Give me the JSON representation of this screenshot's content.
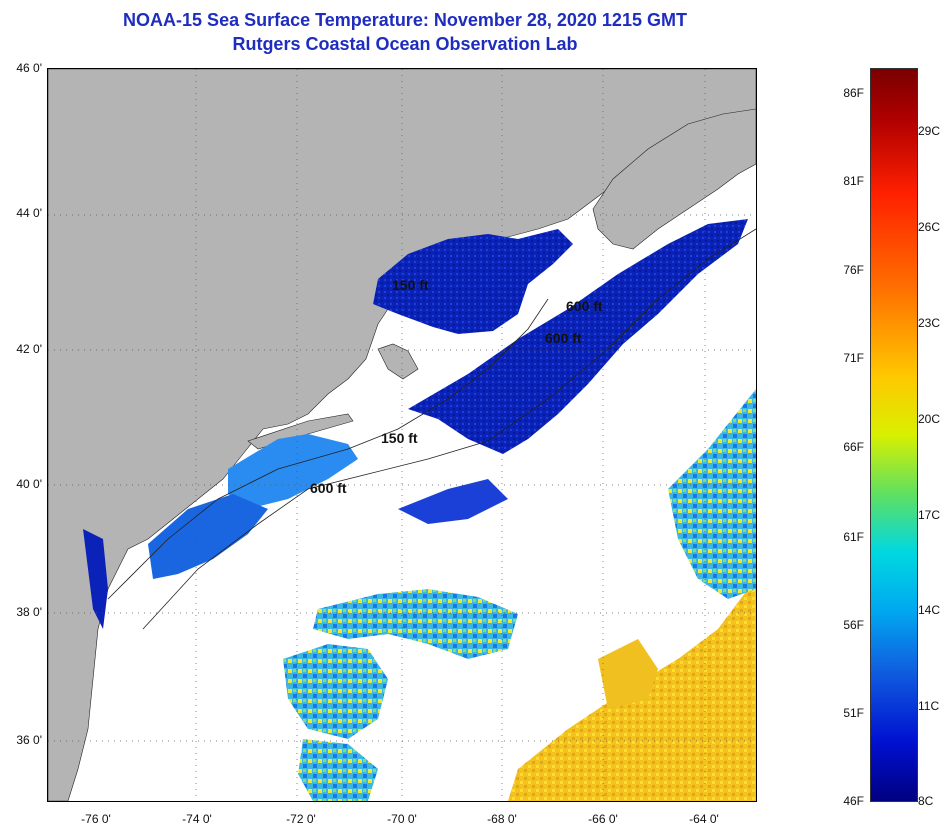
{
  "header": {
    "title": "NOAA-15 Sea Surface Temperature:  November 28, 2020 1215 GMT",
    "subtitle": "Rutgers Coastal Ocean Observation Lab"
  },
  "map": {
    "lat_labels": [
      "46 0'",
      "44 0'",
      "42 0'",
      "40 0'",
      "38 0'",
      "36 0'"
    ],
    "lon_labels": [
      "-76 0'",
      "-74 0'",
      "-72 0'",
      "-70 0'",
      "-68 0'",
      "-66 0'",
      "-64 0'"
    ],
    "depth_labels": [
      "150 ft",
      "600 ft",
      "600 ft",
      "600 ft",
      "150 ft"
    ]
  },
  "colorbar": {
    "fahrenheit": [
      "86F",
      "81F",
      "76F",
      "71F",
      "66F",
      "61F",
      "56F",
      "51F",
      "46F"
    ],
    "celsius": [
      "29C",
      "26C",
      "23C",
      "20C",
      "17C",
      "14C",
      "11C",
      "8C"
    ]
  },
  "colors": {
    "land": "#b4b4b4",
    "title": "#1f2dbf",
    "cold": "#0a1eb4",
    "warm": "#f0c020"
  }
}
